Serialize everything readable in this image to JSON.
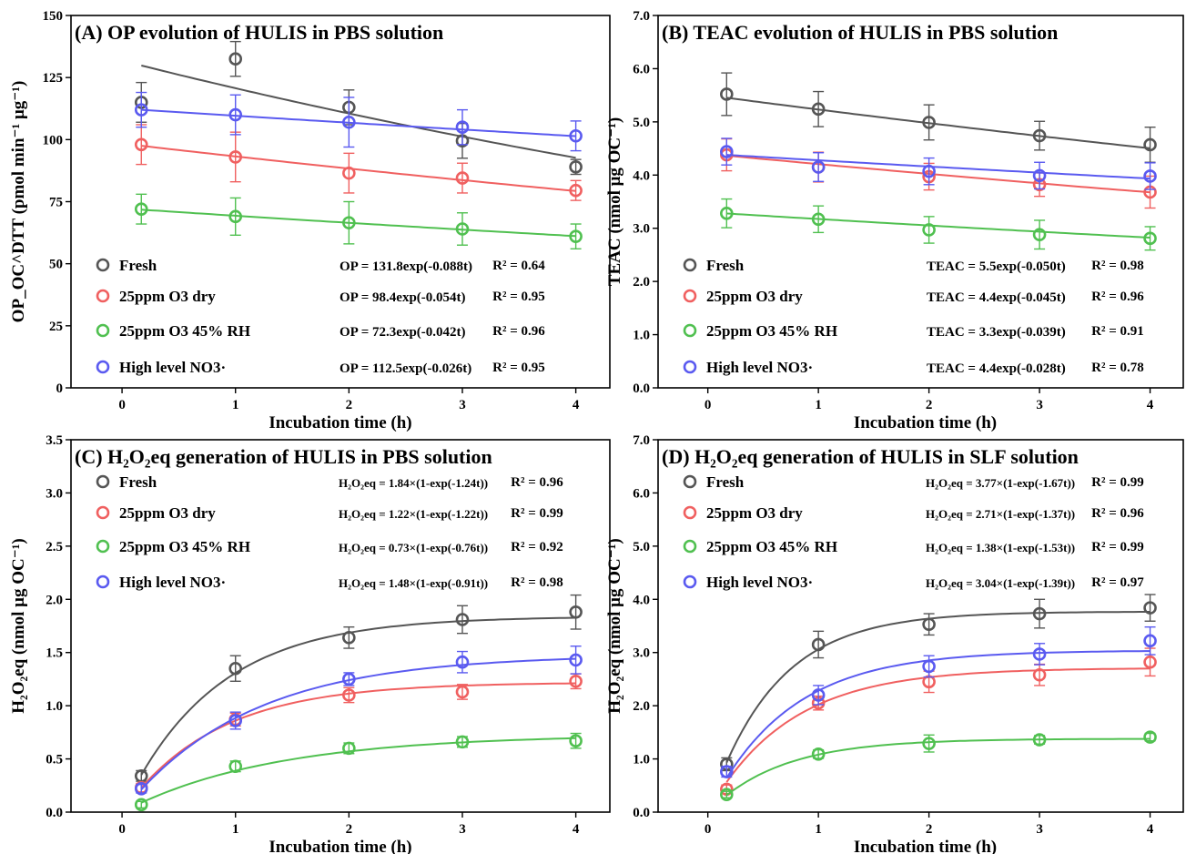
{
  "colors": {
    "Fresh": "#555555",
    "25ppm O3 dry": "#f06060",
    "25ppm O3 45% RH": "#50c050",
    "High level NO3·": "#5a5af0"
  },
  "xlabel": "Incubation time (h)",
  "chart_data": [
    {
      "id": "A",
      "type": "scatter",
      "title": "(A) OP evolution of HULIS in PBS solution",
      "xlabel": "Incubation time (h)",
      "ylabel": "OP_OC^DTT (pmol min⁻¹ μg⁻¹)",
      "xlim": [
        -0.45,
        4.3
      ],
      "ylim": [
        0,
        150
      ],
      "xticks": [
        0,
        1,
        2,
        3,
        4
      ],
      "yticks": [
        0,
        25,
        50,
        75,
        100,
        125,
        150
      ],
      "ytick_labels": [
        "0",
        "25",
        "50",
        "75",
        "100",
        "125",
        "150"
      ],
      "fit": "exp_decay",
      "x": [
        0.17,
        1,
        2,
        3,
        4
      ],
      "series": [
        {
          "name": "Fresh",
          "values": [
            115,
            132.5,
            113,
            99.5,
            89
          ],
          "errors": [
            8,
            7,
            7,
            7,
            3
          ],
          "fit_params": [
            131.8,
            0.088
          ],
          "equation": "OP = 131.8exp(-0.088t)",
          "r2": "R² = 0.64"
        },
        {
          "name": "25ppm O3 dry",
          "values": [
            98,
            93,
            86.5,
            84.5,
            79.5
          ],
          "errors": [
            8,
            10,
            8,
            6,
            4
          ],
          "fit_params": [
            98.4,
            0.054
          ],
          "equation": "OP = 98.4exp(-0.054t)",
          "r2": "R² = 0.95"
        },
        {
          "name": "25ppm O3 45% RH",
          "values": [
            72,
            69,
            66.5,
            64,
            61
          ],
          "errors": [
            6,
            7.5,
            8.5,
            6.5,
            5
          ],
          "fit_params": [
            72.3,
            0.042
          ],
          "equation": "OP = 72.3exp(-0.042t)",
          "r2": "R² = 0.96"
        },
        {
          "name": "High level NO3·",
          "values": [
            112,
            110,
            107,
            105,
            101.5
          ],
          "errors": [
            7,
            8,
            10,
            7,
            6
          ],
          "fit_params": [
            112.5,
            0.026
          ],
          "equation": "OP = 112.5exp(-0.026t)",
          "r2": "R² = 0.95"
        }
      ]
    },
    {
      "id": "B",
      "type": "scatter",
      "title": "(B) TEAC evolution of HULIS in PBS solution",
      "xlabel": "Incubation time (h)",
      "ylabel": "TEAC (nmol μg OC⁻¹)",
      "xlim": [
        -0.45,
        4.3
      ],
      "ylim": [
        0,
        7
      ],
      "xticks": [
        0,
        1,
        2,
        3,
        4
      ],
      "yticks": [
        0,
        1,
        2,
        3,
        4,
        5,
        6,
        7
      ],
      "ytick_labels": [
        "0.0",
        "1.0",
        "2.0",
        "3.0",
        "4.0",
        "5.0",
        "6.0",
        "7.0"
      ],
      "fit": "exp_decay",
      "x": [
        0.17,
        1,
        2,
        3,
        4
      ],
      "series": [
        {
          "name": "Fresh",
          "values": [
            5.52,
            5.24,
            4.99,
            4.74,
            4.57
          ],
          "errors": [
            0.4,
            0.33,
            0.33,
            0.27,
            0.33
          ],
          "fit_params": [
            5.5,
            0.05
          ],
          "equation": "TEAC = 5.5exp(-0.050t)",
          "r2": "R² = 0.98"
        },
        {
          "name": "25ppm O3 dry",
          "values": [
            4.38,
            4.15,
            3.97,
            3.82,
            3.68
          ],
          "errors": [
            0.3,
            0.28,
            0.25,
            0.22,
            0.3
          ],
          "fit_params": [
            4.4,
            0.045
          ],
          "equation": "TEAC = 4.4exp(-0.045t)",
          "r2": "R² = 0.96"
        },
        {
          "name": "25ppm O3 45% RH",
          "values": [
            3.28,
            3.17,
            2.97,
            2.88,
            2.81
          ],
          "errors": [
            0.27,
            0.25,
            0.25,
            0.27,
            0.22
          ],
          "fit_params": [
            3.3,
            0.039
          ],
          "equation": "TEAC = 3.3exp(-0.039t)",
          "r2": "R² = 0.91"
        },
        {
          "name": "High level NO3·",
          "values": [
            4.44,
            4.15,
            4.07,
            3.99,
            3.98
          ],
          "errors": [
            0.25,
            0.27,
            0.25,
            0.25,
            0.25
          ],
          "fit_params": [
            4.4,
            0.028
          ],
          "equation": "TEAC = 4.4exp(-0.028t)",
          "r2": "R² = 0.78"
        }
      ]
    },
    {
      "id": "C",
      "type": "scatter",
      "title": "(C) H₂O₂eq generation of HULIS in PBS solution",
      "xlabel": "Incubation time (h)",
      "ylabel": "H₂O₂eq (nmol μg OC⁻¹)",
      "xlim": [
        -0.45,
        4.3
      ],
      "ylim": [
        0,
        3.5
      ],
      "xticks": [
        0,
        1,
        2,
        3,
        4
      ],
      "yticks": [
        0,
        0.5,
        1,
        1.5,
        2,
        2.5,
        3,
        3.5
      ],
      "ytick_labels": [
        "0.0",
        "0.5",
        "1.0",
        "1.5",
        "2.0",
        "2.5",
        "3.0",
        "3.5"
      ],
      "fit": "exp_rise",
      "x": [
        0.17,
        1,
        2,
        3,
        4
      ],
      "series": [
        {
          "name": "Fresh",
          "values": [
            0.34,
            1.35,
            1.64,
            1.81,
            1.88
          ],
          "errors": [
            0.05,
            0.12,
            0.1,
            0.13,
            0.16
          ],
          "fit_params": [
            1.84,
            1.24
          ],
          "equation": "H₂O₂eq = 1.84×(1-exp(-1.24t))",
          "r2": "R² = 0.96"
        },
        {
          "name": "25ppm O3 dry",
          "values": [
            0.23,
            0.87,
            1.1,
            1.13,
            1.23
          ],
          "errors": [
            0.04,
            0.06,
            0.07,
            0.07,
            0.07
          ],
          "fit_params": [
            1.22,
            1.22
          ],
          "equation": "H₂O₂eq = 1.22×(1-exp(-1.22t))",
          "r2": "R² = 0.99"
        },
        {
          "name": "25ppm O3 45% RH",
          "values": [
            0.07,
            0.43,
            0.6,
            0.66,
            0.67
          ],
          "errors": [
            0.03,
            0.05,
            0.05,
            0.05,
            0.07
          ],
          "fit_params": [
            0.73,
            0.76
          ],
          "equation": "H₂O₂eq = 0.73×(1-exp(-0.76t))",
          "r2": "R² = 0.92"
        },
        {
          "name": "High level NO3·",
          "values": [
            0.22,
            0.86,
            1.25,
            1.41,
            1.43
          ],
          "errors": [
            0.04,
            0.08,
            0.06,
            0.1,
            0.13
          ],
          "fit_params": [
            1.48,
            0.91
          ],
          "equation": "H₂O₂eq = 1.48×(1-exp(-0.91t))",
          "r2": "R² = 0.98"
        }
      ]
    },
    {
      "id": "D",
      "type": "scatter",
      "title": "(D) H₂O₂eq generation of HULIS in SLF solution",
      "xlabel": "Incubation time (h)",
      "ylabel": "H₂O₂eq (nmol μg OC⁻¹)",
      "xlim": [
        -0.45,
        4.3
      ],
      "ylim": [
        0,
        7
      ],
      "xticks": [
        0,
        1,
        2,
        3,
        4
      ],
      "yticks": [
        0,
        1,
        2,
        3,
        4,
        5,
        6,
        7
      ],
      "ytick_labels": [
        "0.0",
        "1.0",
        "2.0",
        "3.0",
        "4.0",
        "5.0",
        "6.0",
        "7.0"
      ],
      "fit": "exp_rise",
      "x": [
        0.17,
        1,
        2,
        3,
        4
      ],
      "series": [
        {
          "name": "Fresh",
          "values": [
            0.9,
            3.15,
            3.53,
            3.73,
            3.84
          ],
          "errors": [
            0.12,
            0.25,
            0.2,
            0.27,
            0.25
          ],
          "fit_params": [
            3.77,
            1.67
          ],
          "equation": "H₂O₂eq = 3.77×(1-exp(-1.67t))",
          "r2": "R² = 0.99"
        },
        {
          "name": "25ppm O3 dry",
          "values": [
            0.43,
            2.05,
            2.45,
            2.58,
            2.82
          ],
          "errors": [
            0.08,
            0.13,
            0.2,
            0.2,
            0.26
          ],
          "fit_params": [
            2.71,
            1.37
          ],
          "equation": "H₂O₂eq = 2.71×(1-exp(-1.37t))",
          "r2": "R² = 0.96"
        },
        {
          "name": "25ppm O3 45% RH",
          "values": [
            0.33,
            1.09,
            1.29,
            1.36,
            1.41
          ],
          "errors": [
            0.06,
            0.08,
            0.16,
            0.08,
            0.07
          ],
          "fit_params": [
            1.38,
            1.53
          ],
          "equation": "H₂O₂eq = 1.38×(1-exp(-1.53t))",
          "r2": "R² = 0.99"
        },
        {
          "name": "High level NO3·",
          "values": [
            0.76,
            2.2,
            2.74,
            2.97,
            3.22
          ],
          "errors": [
            0.1,
            0.18,
            0.2,
            0.2,
            0.26
          ],
          "fit_params": [
            3.04,
            1.39
          ],
          "equation": "H₂O₂eq = 3.04×(1-exp(-1.39t))",
          "r2": "R² = 0.97"
        }
      ]
    }
  ]
}
